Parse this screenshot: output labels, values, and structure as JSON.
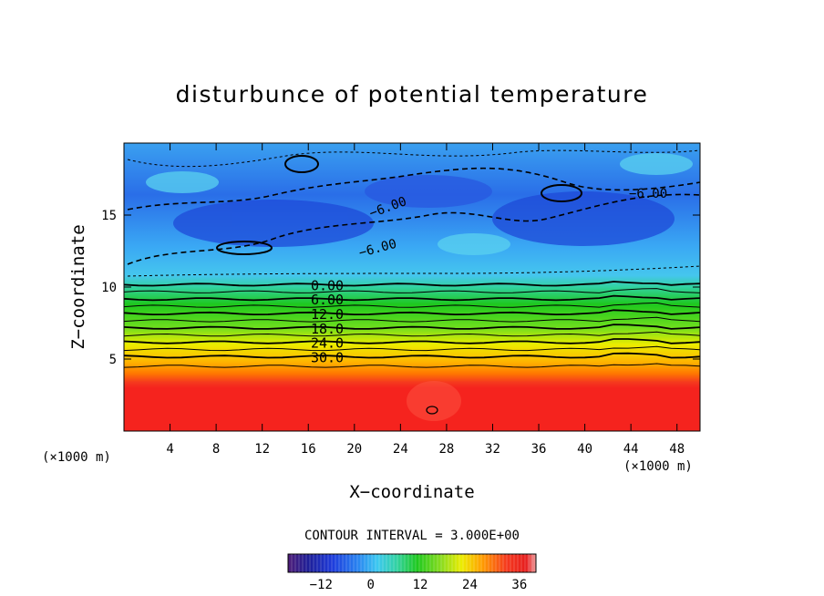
{
  "chart_data": {
    "type": "heatmap",
    "title": "disturbunce of potential temperature",
    "xlabel": "X−coordinate",
    "ylabel": "Z−coordinate",
    "x_unit": "(×1000 m)",
    "z_unit": "(×1000 m)",
    "xlim": [
      0,
      50
    ],
    "ylim": [
      0,
      20
    ],
    "x_ticks": [
      "4",
      "8",
      "12",
      "16",
      "20",
      "24",
      "28",
      "32",
      "36",
      "40",
      "44",
      "48"
    ],
    "y_ticks": [
      "5",
      "10",
      "15"
    ],
    "contour_interval_text": "CONTOUR INTERVAL = 3.000E+00",
    "colorbar": {
      "min": -20,
      "max": 40,
      "ticks": [
        "−12",
        "0",
        "12",
        "24",
        "36"
      ]
    },
    "isoline_labels": [
      "0.00",
      "6.00",
      "12.0",
      "18.0",
      "24.0",
      "30.0"
    ],
    "upper_labels": [
      "−6.00",
      "−6.00",
      "−6.00"
    ],
    "profile_note": "Horizontally layered field: about −12 to −6 above 11 km, rising through 0 near 10.5 km to about 36 below 4 km",
    "vertical_profile": {
      "z": [
        0,
        2,
        4,
        4.5,
        5,
        5.5,
        6,
        6.5,
        7,
        7.5,
        8,
        8.5,
        9,
        9.5,
        10,
        10.5,
        11,
        12,
        14,
        16,
        18,
        20
      ],
      "value": [
        36,
        36,
        35,
        33,
        31,
        28,
        25,
        22,
        19,
        16,
        13,
        10,
        7,
        4,
        1,
        -2,
        -6,
        -8,
        -9,
        -9,
        -8,
        -7
      ]
    },
    "colors": {
      "red": "#f5231e",
      "orange": "#ff8c00",
      "yellow": "#ecec00",
      "green": "#1ec81e",
      "cyan": "#32c8ff",
      "blue": "#0a50e6"
    }
  }
}
